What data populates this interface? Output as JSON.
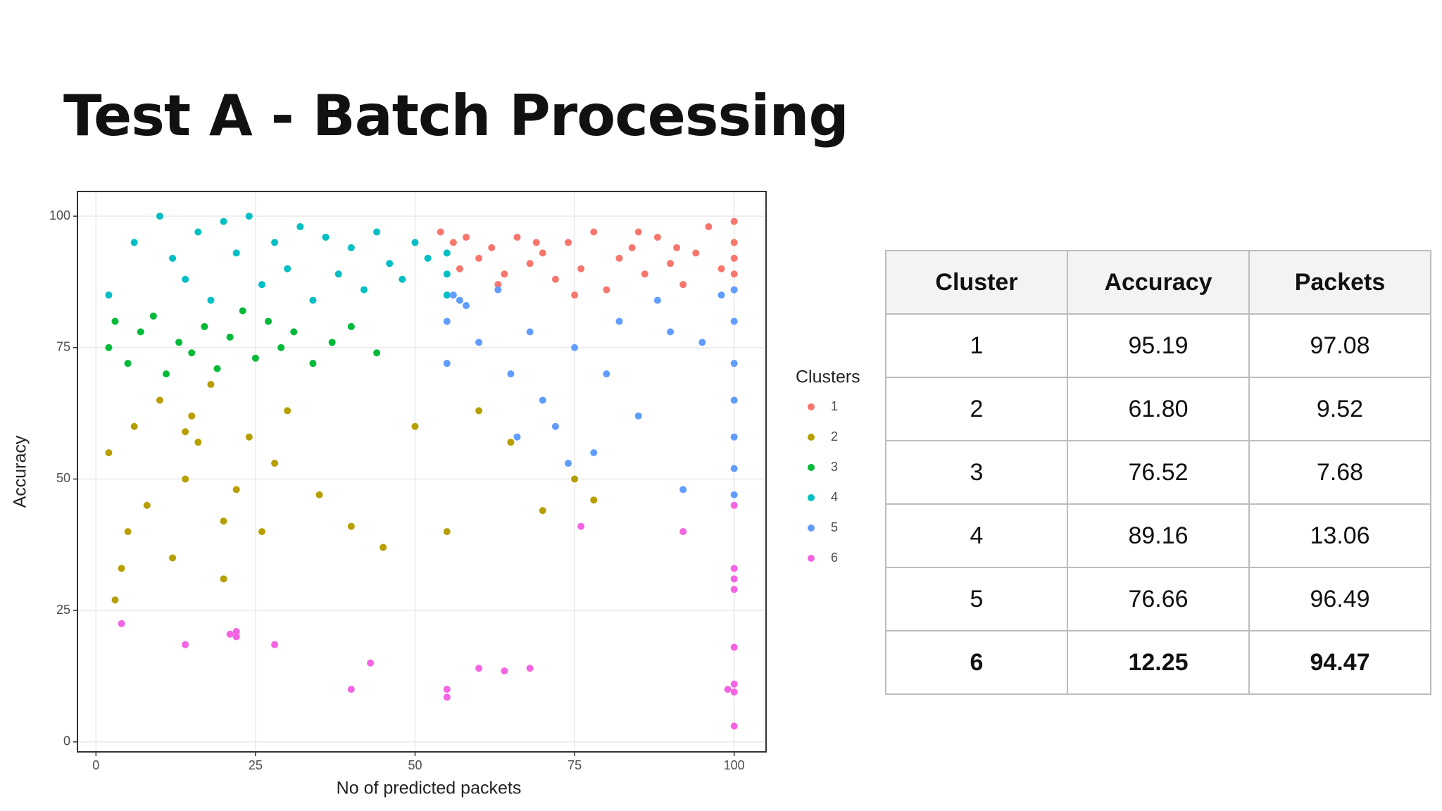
{
  "title": "Test A - Batch Processing",
  "chart_data": {
    "type": "scatter",
    "x_label": "No of predicted packets",
    "y_label": "Accuracy",
    "legend_title": "Clusters",
    "legend": "right",
    "grid": true,
    "xlim": [
      -2.9,
      105
    ],
    "ylim": [
      -1.9,
      104.7
    ],
    "xticks": [
      0,
      25,
      50,
      75,
      100
    ],
    "yticks": [
      0,
      25,
      50,
      75,
      100
    ],
    "series": [
      {
        "name": "1",
        "color": "#F8766D",
        "x": [
          54,
          56,
          58,
          60,
          62,
          64,
          66,
          68,
          70,
          72,
          74,
          76,
          78,
          80,
          82,
          84,
          86,
          88,
          90,
          92,
          94,
          96,
          98,
          100,
          100,
          100,
          100,
          100,
          57,
          63,
          69,
          75,
          85,
          91
        ],
        "values": [
          97,
          95,
          96,
          92,
          94,
          89,
          96,
          91,
          93,
          88,
          95,
          90,
          97,
          86,
          92,
          94,
          89,
          96,
          91,
          87,
          93,
          98,
          90,
          99,
          95,
          92,
          89,
          86,
          90,
          87,
          95,
          85,
          97,
          94
        ]
      },
      {
        "name": "2",
        "color": "#B79F00",
        "x": [
          2,
          3,
          4,
          5,
          6,
          8,
          10,
          12,
          14,
          15,
          16,
          18,
          20,
          22,
          24,
          26,
          28,
          30,
          35,
          40,
          45,
          50,
          55,
          60,
          65,
          70,
          75,
          78,
          20,
          14
        ],
        "values": [
          55,
          27,
          33,
          40,
          60,
          45,
          65,
          35,
          50,
          62,
          57,
          68,
          31,
          48,
          58,
          40,
          53,
          63,
          47,
          41,
          37,
          60,
          40,
          63,
          57,
          44,
          50,
          46,
          42,
          59
        ]
      },
      {
        "name": "3",
        "color": "#00BA38",
        "x": [
          2,
          3,
          5,
          7,
          9,
          11,
          13,
          15,
          17,
          19,
          21,
          23,
          25,
          27,
          29,
          31,
          34,
          37,
          40,
          44
        ],
        "values": [
          75,
          80,
          72,
          78,
          81,
          70,
          76,
          74,
          79,
          71,
          77,
          82,
          73,
          80,
          75,
          78,
          72,
          76,
          79,
          74
        ]
      },
      {
        "name": "4",
        "color": "#00BFC4",
        "x": [
          2,
          6,
          10,
          12,
          14,
          16,
          18,
          20,
          22,
          24,
          26,
          28,
          30,
          32,
          34,
          36,
          38,
          40,
          42,
          44,
          46,
          48,
          50,
          52,
          55,
          55,
          55
        ],
        "values": [
          85,
          95,
          100,
          92,
          88,
          97,
          84,
          99,
          93,
          100,
          87,
          95,
          90,
          98,
          84,
          96,
          89,
          94,
          86,
          97,
          91,
          88,
          95,
          92,
          85,
          89,
          93
        ]
      },
      {
        "name": "5",
        "color": "#619CFF",
        "x": [
          55,
          55,
          56,
          58,
          60,
          63,
          65,
          68,
          70,
          72,
          75,
          78,
          80,
          82,
          85,
          88,
          90,
          92,
          95,
          98,
          100,
          100,
          100,
          100,
          100,
          100,
          100,
          57,
          66,
          74
        ],
        "values": [
          72,
          80,
          85,
          83,
          76,
          86,
          70,
          78,
          65,
          60,
          75,
          55,
          70,
          80,
          62,
          84,
          78,
          48,
          76,
          85,
          86,
          80,
          72,
          65,
          58,
          52,
          47,
          84,
          58,
          53
        ]
      },
      {
        "name": "6",
        "color": "#F564E3",
        "x": [
          4,
          14,
          21,
          22,
          22,
          28,
          40,
          43,
          55,
          55,
          60,
          64,
          68,
          76,
          92,
          99,
          100,
          100,
          100,
          100,
          100,
          100,
          100,
          100
        ],
        "values": [
          22.5,
          18.5,
          20.5,
          21,
          20,
          18.5,
          10,
          15,
          10,
          8.5,
          14,
          13.5,
          14,
          41,
          40,
          10,
          45,
          33,
          31,
          29,
          18,
          11,
          9.5,
          3
        ]
      }
    ]
  },
  "table": {
    "columns": [
      "Cluster",
      "Accuracy",
      "Packets"
    ],
    "rows": [
      [
        "1",
        "95.19",
        "97.08"
      ],
      [
        "2",
        "61.80",
        "9.52"
      ],
      [
        "3",
        "76.52",
        "7.68"
      ],
      [
        "4",
        "89.16",
        "13.06"
      ],
      [
        "5",
        "76.66",
        "96.49"
      ],
      [
        "6",
        "12.25",
        "94.47"
      ]
    ],
    "bold_row": 5
  }
}
